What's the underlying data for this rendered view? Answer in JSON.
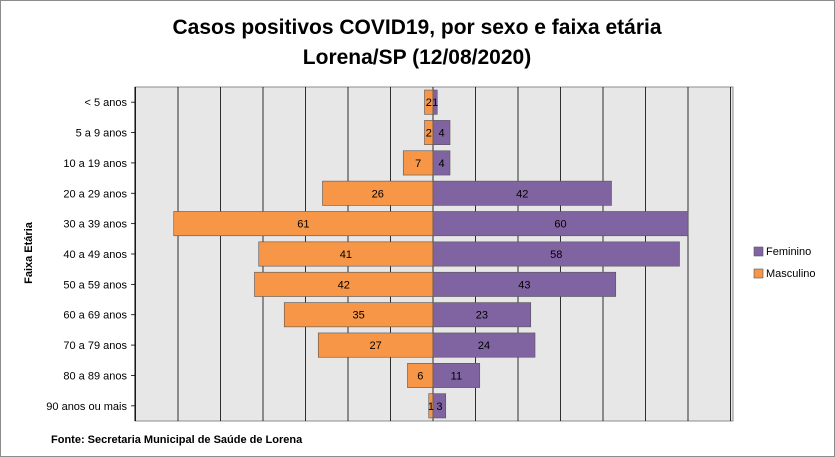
{
  "chart_data": {
    "type": "bar",
    "orientation": "horizontal",
    "title_line1": "Casos positivos COVID19, por sexo e faixa etária",
    "title_line2": "Lorena/SP (12/08/2020)",
    "ylabel": "Faixa Etária",
    "source": "Fonte: Secretaria Municipal  de Saúde de Lorena",
    "categories": [
      "< 5 anos",
      "5 a 9 anos",
      "10 a 19 anos",
      "20 a 29 anos",
      "30 a 39 anos",
      "40 a 49 anos",
      "50 a 59 anos",
      "60 a 69 anos",
      "70 a 79 anos",
      "80 a 89 anos",
      "90 anos ou mais"
    ],
    "series": [
      {
        "name": "Feminino",
        "color": "#8064a2",
        "values": [
          1,
          4,
          4,
          42,
          60,
          58,
          43,
          23,
          24,
          11,
          3
        ]
      },
      {
        "name": "Masculino",
        "color": "#f79646",
        "values": [
          2,
          2,
          7,
          26,
          61,
          41,
          42,
          35,
          27,
          6,
          1
        ]
      }
    ],
    "xlim": [
      -70,
      70
    ],
    "grid": true,
    "legend_position": "right",
    "plot_background": "#e7e7e7"
  }
}
